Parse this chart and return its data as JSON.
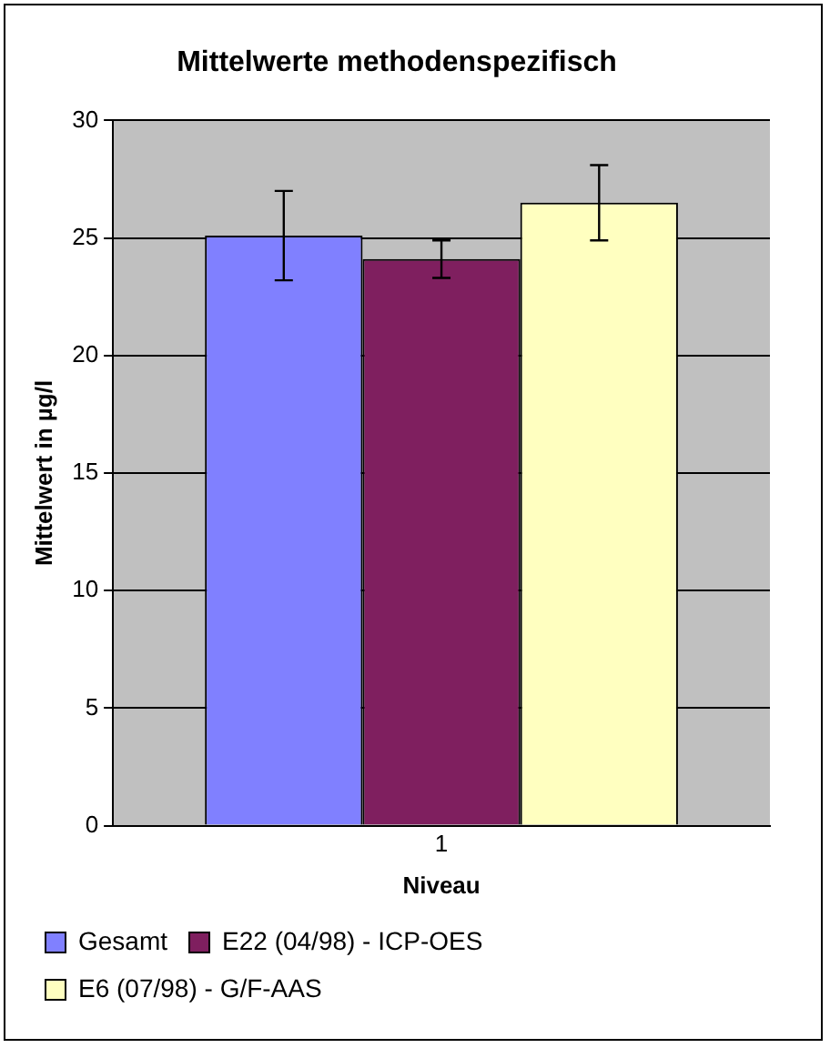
{
  "chart_data": {
    "type": "bar",
    "title": "Mittelwerte methodenspezifisch",
    "xlabel": "Niveau",
    "ylabel": "Mittelwert in µg/l",
    "categories": [
      "1"
    ],
    "series": [
      {
        "name": "Gesamt",
        "color": "#8080ff",
        "values": [
          25.1
        ],
        "errors": [
          1.9
        ]
      },
      {
        "name": "E22 (04/98) - ICP-OES",
        "color": "#7f1f5f",
        "values": [
          24.1
        ],
        "errors": [
          0.8
        ]
      },
      {
        "name": "E6 (07/98) - G/F-AAS",
        "color": "#ffffc0",
        "values": [
          26.5
        ],
        "errors": [
          1.6
        ]
      }
    ],
    "ylim": [
      0,
      30
    ],
    "yticks": [
      0,
      5,
      10,
      15,
      20,
      25,
      30
    ],
    "grid": "y",
    "legend": "bottom"
  }
}
